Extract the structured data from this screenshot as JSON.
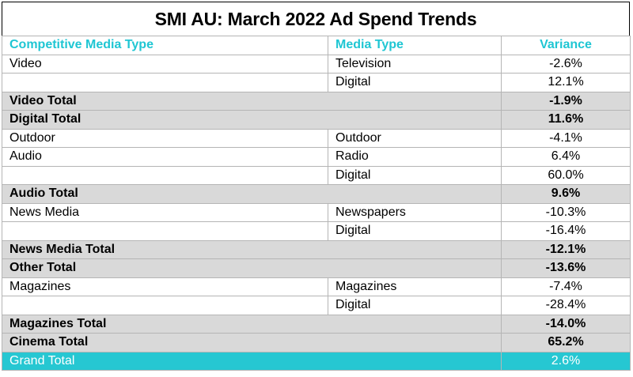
{
  "title": "SMI AU: March 2022 Ad Spend Trends",
  "headers": [
    "Competitive Media Type",
    "Media Type",
    "Variance"
  ],
  "rows": [
    {
      "type": "data",
      "c1": "Video",
      "c2": "Television",
      "c3": "-2.6%"
    },
    {
      "type": "data",
      "c1": "",
      "c2": "Digital",
      "c3": "12.1%"
    },
    {
      "type": "total",
      "c1": "Video Total",
      "c3": "-1.9%"
    },
    {
      "type": "total",
      "c1": "Digital Total",
      "c3": "11.6%"
    },
    {
      "type": "data",
      "c1": "Outdoor",
      "c2": "Outdoor",
      "c3": "-4.1%"
    },
    {
      "type": "data",
      "c1": "Audio",
      "c2": "Radio",
      "c3": "6.4%"
    },
    {
      "type": "data",
      "c1": "",
      "c2": "Digital",
      "c3": "60.0%"
    },
    {
      "type": "total",
      "c1": "Audio Total",
      "c3": "9.6%"
    },
    {
      "type": "data",
      "c1": "News Media",
      "c2": "Newspapers",
      "c3": "-10.3%"
    },
    {
      "type": "data",
      "c1": "",
      "c2": "Digital",
      "c3": "-16.4%"
    },
    {
      "type": "total",
      "c1": "News Media Total",
      "c3": "-12.1%"
    },
    {
      "type": "total",
      "c1": "Other Total",
      "c3": "-13.6%"
    },
    {
      "type": "data",
      "c1": "Magazines",
      "c2": "Magazines",
      "c3": "-7.4%"
    },
    {
      "type": "data",
      "c1": "",
      "c2": "Digital",
      "c3": "-28.4%"
    },
    {
      "type": "total",
      "c1": "Magazines Total",
      "c3": "-14.0%"
    },
    {
      "type": "total",
      "c1": "Cinema Total",
      "c3": "65.2%"
    },
    {
      "type": "grand",
      "c1": "Grand Total",
      "c3": "2.6%"
    }
  ],
  "colors": {
    "header_text": "#1fc6d3",
    "total_bg": "#d9d9d9",
    "grand_bg": "#26c7d2"
  }
}
